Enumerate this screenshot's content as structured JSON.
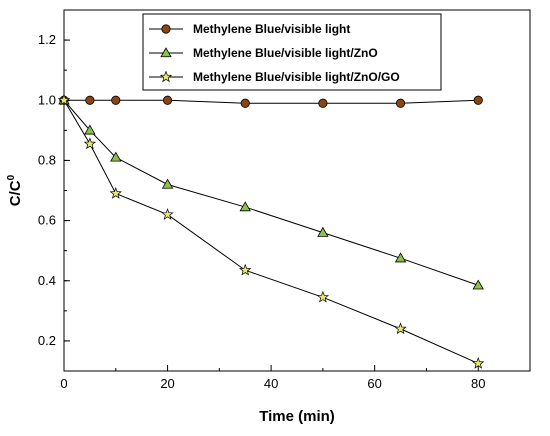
{
  "chart_data": {
    "type": "line",
    "title": "",
    "xlabel": "Time (min)",
    "ylabel": "C/C",
    "ylabel_superscript": "0",
    "xlim": [
      0,
      90
    ],
    "ylim": [
      0.1,
      1.3
    ],
    "xticks": [
      0,
      20,
      40,
      60,
      80
    ],
    "yticks": [
      0.2,
      0.4,
      0.6,
      0.8,
      1.0,
      1.2
    ],
    "ytick_labels": [
      "0.2",
      "0.4",
      "0.6",
      "0.8",
      "1.0",
      "1.2"
    ],
    "grid": false,
    "legend_position": "top-center",
    "series": [
      {
        "name": "Methylene Blue/visible light",
        "marker": "circle",
        "color": "#8b4513",
        "x": [
          0,
          5,
          10,
          20,
          35,
          50,
          65,
          80
        ],
        "y": [
          1.0,
          1.0,
          1.0,
          1.0,
          0.99,
          0.99,
          0.99,
          1.0
        ]
      },
      {
        "name": "Methylene Blue/visible light/ZnO",
        "marker": "triangle",
        "color": "#8bc34a",
        "x": [
          0,
          5,
          10,
          20,
          35,
          50,
          65,
          80
        ],
        "y": [
          1.0,
          0.9,
          0.81,
          0.72,
          0.645,
          0.56,
          0.475,
          0.385
        ]
      },
      {
        "name": "Methylene Blue/visible light/ZnO/GO",
        "marker": "star",
        "color": "#e8e870",
        "x": [
          0,
          5,
          10,
          20,
          35,
          50,
          65,
          80
        ],
        "y": [
          1.0,
          0.855,
          0.69,
          0.62,
          0.435,
          0.345,
          0.24,
          0.125
        ]
      }
    ]
  }
}
